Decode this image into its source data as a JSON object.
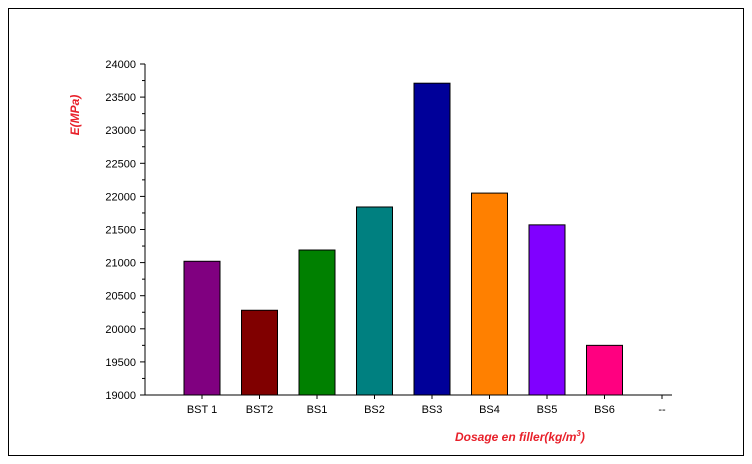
{
  "chart_data": {
    "type": "bar",
    "title": "",
    "ylabel": "E(MPa)",
    "xlabel": "Dosage en filler(kg/m",
    "xlabel_superscript": "3",
    "xlabel_suffix": ")",
    "categories": [
      "BST 1",
      "BST2",
      "BS1",
      "BS2",
      "BS3",
      "BS4",
      "BS5",
      "BS6",
      "--"
    ],
    "values": [
      21020,
      20280,
      21190,
      21840,
      23710,
      22050,
      21570,
      19750,
      null
    ],
    "colors": [
      "#800080",
      "#800000",
      "#008000",
      "#008080",
      "#000099",
      "#FF8000",
      "#8000FF",
      "#FF0080",
      null
    ],
    "ylim": [
      19000,
      24000
    ],
    "yticks": [
      19000,
      19500,
      20000,
      20500,
      21000,
      21500,
      22000,
      22500,
      23000,
      23500,
      24000
    ],
    "grid": false,
    "legend": "none",
    "axis_title_color": "#E8202A"
  }
}
